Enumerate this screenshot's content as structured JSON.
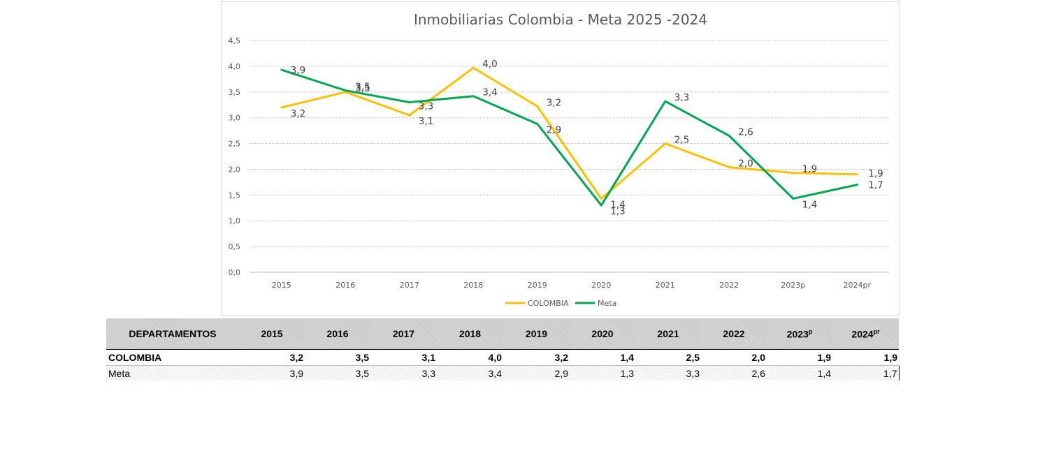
{
  "chart_data": {
    "type": "line",
    "title": "Inmobiliarias Colombia - Meta 2025 -2024",
    "categories": [
      "2015",
      "2016",
      "2017",
      "2018",
      "2019",
      "2020",
      "2021",
      "2022",
      "2023p",
      "2024pr"
    ],
    "series": [
      {
        "name": "COLOMBIA",
        "color": "#ffc000",
        "values": [
          3.2,
          3.5,
          3.05,
          3.97,
          3.22,
          1.43,
          2.5,
          2.04,
          1.93,
          1.9
        ],
        "labels": [
          "3,2",
          "3,5",
          "3,1",
          "4,0",
          "3,2",
          "1,4",
          "2,5",
          "2,0",
          "1,9",
          "1,9"
        ]
      },
      {
        "name": "Meta",
        "color": "#00a651",
        "values": [
          3.93,
          3.53,
          3.3,
          3.42,
          2.88,
          1.3,
          3.32,
          2.65,
          1.43,
          1.7
        ],
        "labels": [
          "3,9",
          "3,5",
          "3,3",
          "3,4",
          "2,9",
          "1,3",
          "3,3",
          "2,6",
          "1,4",
          "1,7"
        ]
      }
    ],
    "yticks": [
      "0,0",
      "0,5",
      "1,0",
      "1,5",
      "2,0",
      "2,5",
      "3,0",
      "3,5",
      "4,0",
      "4,5"
    ],
    "ylim": [
      0,
      4.5
    ],
    "grid": true,
    "legend": "bottom"
  },
  "table": {
    "header_label": "DEPARTAMENTOS",
    "years": [
      "2015",
      "2016",
      "2017",
      "2018",
      "2019",
      "2020",
      "2021",
      "2022"
    ],
    "year_2023": "2023",
    "year_2023_sup": "p",
    "year_2024": "2024",
    "year_2024_sup": "pr",
    "rows": [
      {
        "name": "COLOMBIA",
        "values": [
          "3,2",
          "3,5",
          "3,1",
          "4,0",
          "3,2",
          "1,4",
          "2,5",
          "2,0",
          "1,9",
          "1,9"
        ]
      },
      {
        "name": "Meta",
        "values": [
          "3,9",
          "3,5",
          "3,3",
          "3,4",
          "2,9",
          "1,3",
          "3,3",
          "2,6",
          "1,4",
          "1,7"
        ]
      }
    ]
  }
}
